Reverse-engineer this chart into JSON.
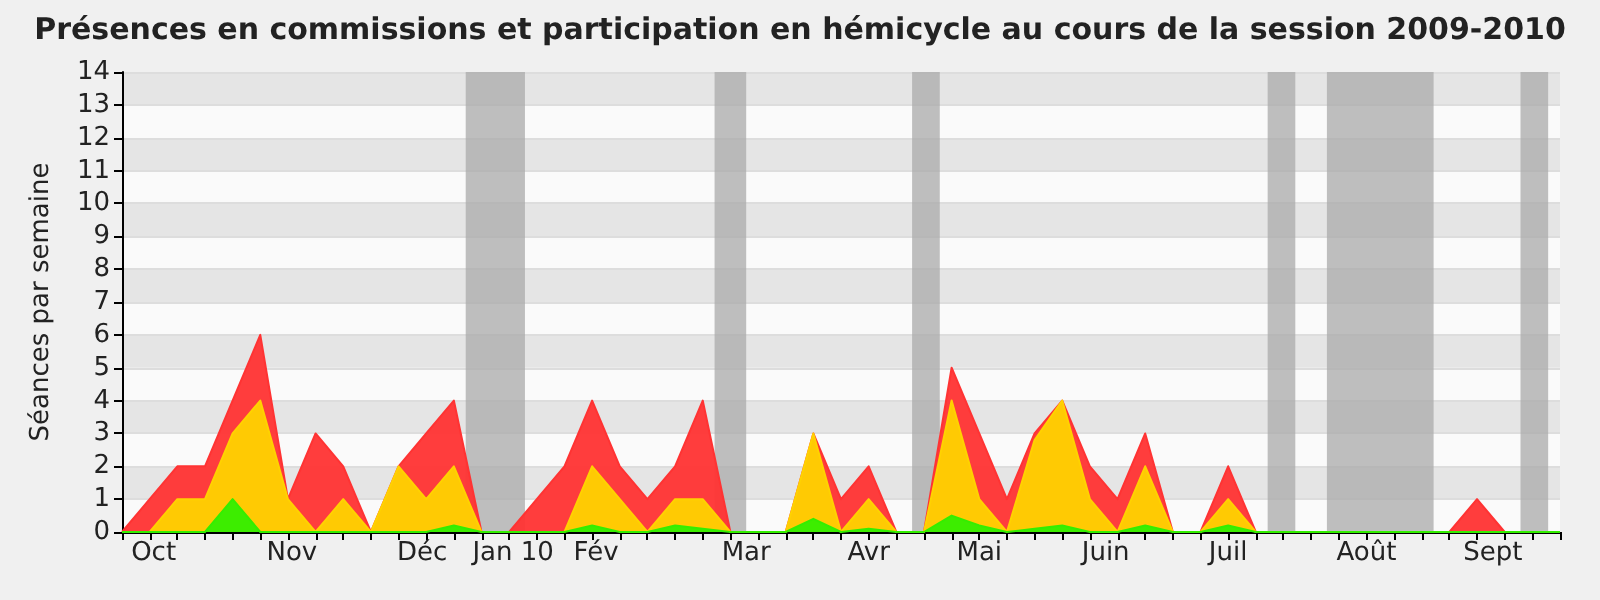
{
  "chart_data": {
    "type": "area",
    "title": "Présences en commissions et participation en hémicycle au cours de la session 2009-2010",
    "ylabel": "Séances par semaine",
    "stacked": true,
    "grid": "y",
    "marker": "none",
    "x": [
      "2009-09-28",
      "2009-10-05",
      "2009-10-12",
      "2009-10-19",
      "2009-10-26",
      "2009-11-02",
      "2009-11-09",
      "2009-11-16",
      "2009-11-23",
      "2009-11-30",
      "2009-12-07",
      "2009-12-14",
      "2009-12-21",
      "2009-12-28",
      "2010-01-04",
      "2010-01-11",
      "2010-01-18",
      "2010-01-25",
      "2010-02-01",
      "2010-02-08",
      "2010-02-15",
      "2010-02-22",
      "2010-03-01",
      "2010-03-08",
      "2010-03-15",
      "2010-03-22",
      "2010-03-29",
      "2010-04-05",
      "2010-04-12",
      "2010-04-19",
      "2010-04-26",
      "2010-05-03",
      "2010-05-10",
      "2010-05-17",
      "2010-05-24",
      "2010-05-31",
      "2010-06-07",
      "2010-06-14",
      "2010-06-21",
      "2010-06-28",
      "2010-07-05",
      "2010-07-12",
      "2010-07-19",
      "2010-07-26",
      "2010-08-02",
      "2010-08-09",
      "2010-08-16",
      "2010-08-23",
      "2010-08-30",
      "2010-09-06",
      "2010-09-13",
      "2010-09-20",
      "2010-09-27"
    ],
    "series": [
      {
        "color": "#33ee00",
        "values": [
          0,
          0,
          0,
          0,
          1,
          0,
          0,
          0,
          0,
          0,
          0,
          0,
          0.2,
          0,
          0,
          0,
          0,
          0.2,
          0,
          0,
          0.2,
          0.1,
          0,
          0,
          0,
          0.4,
          0,
          0.1,
          0,
          0,
          0.5,
          0.2,
          0,
          0.1,
          0.2,
          0,
          0,
          0.2,
          0,
          0,
          0.2,
          0,
          0,
          0,
          0,
          0,
          0,
          0,
          0,
          0,
          0,
          0,
          0
        ]
      },
      {
        "color": "#ffd200",
        "values": [
          0,
          0,
          1,
          1,
          2,
          4,
          1,
          0,
          1,
          0,
          2,
          1,
          1.8,
          0,
          0,
          0,
          0,
          1.8,
          1,
          0,
          0.8,
          0.9,
          0,
          0,
          0,
          2.6,
          0,
          0.9,
          0,
          0,
          3.5,
          0.8,
          0,
          2.7,
          3.8,
          1,
          0,
          1.8,
          0,
          0,
          0.8,
          0,
          0,
          0,
          0,
          0,
          0,
          0,
          0,
          0,
          0,
          0,
          0
        ]
      },
      {
        "color": "#ff3333",
        "values": [
          0,
          1,
          1,
          1,
          1,
          2,
          0,
          3,
          1,
          0,
          0,
          2,
          2,
          0,
          0,
          1,
          2,
          2,
          1,
          1,
          1,
          3,
          0,
          0,
          0,
          0,
          1,
          1,
          0,
          0,
          1,
          2,
          1,
          0.2,
          0,
          1,
          1,
          1,
          0,
          0,
          1,
          0,
          0,
          0,
          0,
          0,
          0,
          0,
          0,
          1,
          0,
          0,
          0
        ]
      }
    ],
    "xlim": [
      "2009-09-28",
      "2010-09-27"
    ],
    "xticks": [
      {
        "value": "2009-10-06",
        "label": "Oct"
      },
      {
        "value": "2009-11-10",
        "label": "Nov"
      },
      {
        "value": "2009-12-13",
        "label": "Déc"
      },
      {
        "value": "2010-01-05",
        "label": "Jan 10"
      },
      {
        "value": "2010-01-26",
        "label": "Fév"
      },
      {
        "value": "2010-03-05",
        "label": "Mar"
      },
      {
        "value": "2010-04-05",
        "label": "Avr"
      },
      {
        "value": "2010-05-03",
        "label": "Mai"
      },
      {
        "value": "2010-06-04",
        "label": "Juin"
      },
      {
        "value": "2010-07-05",
        "label": "Juil"
      },
      {
        "value": "2010-08-09",
        "label": "Août"
      },
      {
        "value": "2010-09-10",
        "label": "Sept"
      }
    ],
    "ylim": [
      0,
      14
    ],
    "yticks": [
      0,
      1,
      2,
      3,
      4,
      5,
      6,
      7,
      8,
      9,
      10,
      11,
      12,
      13,
      14
    ],
    "bands": [
      {
        "axis": "x",
        "from": "2009-12-24",
        "to": "2010-01-08",
        "color": "#aaaaaa"
      },
      {
        "axis": "x",
        "from": "2010-02-25",
        "to": "2010-03-05",
        "color": "#aaaaaa"
      },
      {
        "axis": "x",
        "from": "2010-04-16",
        "to": "2010-04-23",
        "color": "#aaaaaa"
      },
      {
        "axis": "x",
        "from": "2010-07-15",
        "to": "2010-07-22",
        "color": "#aaaaaa"
      },
      {
        "axis": "x",
        "from": "2010-07-30",
        "to": "2010-08-26",
        "color": "#aaaaaa"
      },
      {
        "axis": "x",
        "from": "2010-09-17",
        "to": "2010-09-24",
        "color": "#aaaaaa"
      }
    ]
  }
}
